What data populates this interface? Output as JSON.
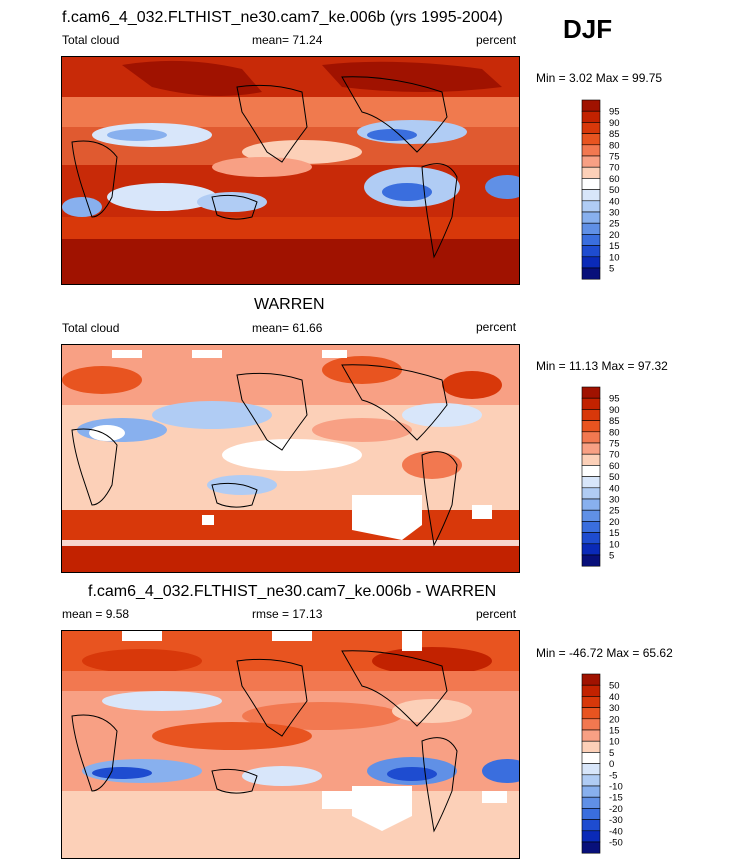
{
  "season": "DJF",
  "panels": [
    {
      "title": "f.cam6_4_032.FLTHIST_ne30.cam7_ke.006b (yrs 1995-2004)",
      "left_label": "Total cloud",
      "center_label": "mean=  71.24",
      "right_label": "percent",
      "minmax": "Min =   3.02 Max =  99.75",
      "colorbar": {
        "labels": [
          "95",
          "90",
          "85",
          "80",
          "75",
          "70",
          "60",
          "50",
          "40",
          "30",
          "25",
          "20",
          "15",
          "10",
          "5"
        ],
        "colors": [
          "#a01200",
          "#c22200",
          "#d8380a",
          "#e85420",
          "#f27850",
          "#f8a084",
          "#fcd0b8",
          "#ffffff",
          "#d8e6fa",
          "#b0ccf4",
          "#88b0ee",
          "#6090e6",
          "#3a6ede",
          "#1e4cd0",
          "#0a2ab8",
          "#08107a"
        ]
      }
    },
    {
      "title": "WARREN",
      "left_label": "Total cloud",
      "center_label": "mean=  61.66",
      "right_label": "percent",
      "minmax": "Min =  11.13 Max =  97.32",
      "colorbar": {
        "labels": [
          "95",
          "90",
          "85",
          "80",
          "75",
          "70",
          "60",
          "50",
          "40",
          "30",
          "25",
          "20",
          "15",
          "10",
          "5"
        ],
        "colors": [
          "#a01200",
          "#c22200",
          "#d8380a",
          "#e85420",
          "#f27850",
          "#f8a084",
          "#fcd0b8",
          "#ffffff",
          "#d8e6fa",
          "#b0ccf4",
          "#88b0ee",
          "#6090e6",
          "#3a6ede",
          "#1e4cd0",
          "#0a2ab8",
          "#08107a"
        ]
      }
    },
    {
      "title": "f.cam6_4_032.FLTHIST_ne30.cam7_ke.006b - WARREN",
      "left_label": "mean =   9.58",
      "center_label": "rmse =  17.13",
      "right_label": "percent",
      "minmax": "Min = -46.72 Max =  65.62",
      "colorbar": {
        "labels": [
          "50",
          "40",
          "30",
          "20",
          "15",
          "10",
          "5",
          "0",
          "-5",
          "-10",
          "-15",
          "-20",
          "-30",
          "-40",
          "-50"
        ],
        "colors": [
          "#a01200",
          "#c22200",
          "#d8380a",
          "#e85420",
          "#f27850",
          "#f8a084",
          "#fcd0b8",
          "#ffffff",
          "#d8e6fa",
          "#b0ccf4",
          "#88b0ee",
          "#6090e6",
          "#3a6ede",
          "#1e4cd0",
          "#0a2ab8",
          "#08107a"
        ]
      }
    }
  ],
  "chart_data": [
    {
      "type": "heatmap",
      "title": "f.cam6_4_032.FLTHIST_ne30.cam7_ke.006b (yrs 1995-2004)",
      "variable": "Total cloud",
      "units": "percent",
      "mean": 71.24,
      "min": 3.02,
      "max": 99.75,
      "levels": [
        5,
        10,
        15,
        20,
        25,
        30,
        40,
        50,
        60,
        70,
        75,
        80,
        85,
        90,
        95
      ]
    },
    {
      "type": "heatmap",
      "title": "WARREN",
      "variable": "Total cloud",
      "units": "percent",
      "mean": 61.66,
      "min": 11.13,
      "max": 97.32,
      "levels": [
        5,
        10,
        15,
        20,
        25,
        30,
        40,
        50,
        60,
        70,
        75,
        80,
        85,
        90,
        95
      ]
    },
    {
      "type": "heatmap",
      "title": "f.cam6_4_032.FLTHIST_ne30.cam7_ke.006b - WARREN",
      "units": "percent",
      "mean": 9.58,
      "rmse": 17.13,
      "min": -46.72,
      "max": 65.62,
      "levels": [
        -50,
        -40,
        -30,
        -20,
        -15,
        -10,
        -5,
        0,
        5,
        10,
        15,
        20,
        30,
        40,
        50
      ]
    }
  ]
}
